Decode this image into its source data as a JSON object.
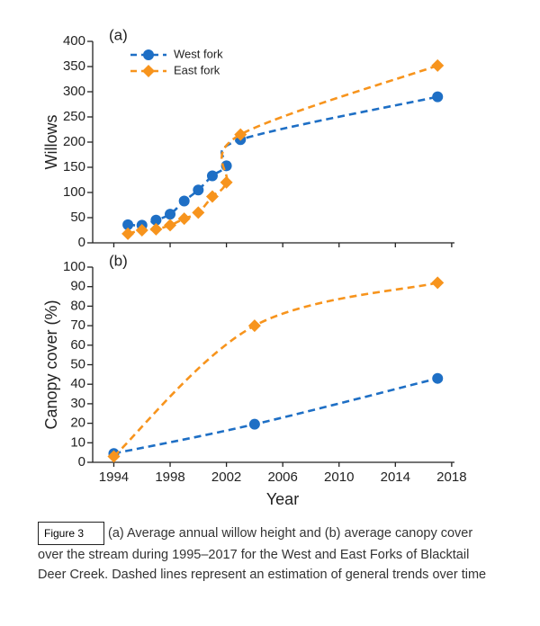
{
  "chart_data": [
    {
      "type": "line",
      "panel_label": "(a)",
      "y_label": "Willows",
      "x": [
        1995,
        1996,
        1997,
        1998,
        1999,
        2000,
        2001,
        2002,
        2003,
        2017
      ],
      "series": [
        {
          "name": "West fork",
          "color": "#1e6fc5",
          "marker": "circle",
          "values": [
            36,
            35,
            45,
            57,
            83,
            105,
            133,
            153,
            205,
            290
          ]
        },
        {
          "name": "East fork",
          "color": "#f7941d",
          "marker": "diamond",
          "values": [
            18,
            25,
            27,
            35,
            48,
            60,
            92,
            120,
            215,
            352
          ]
        }
      ],
      "xlim": [
        1992.5,
        2018.2
      ],
      "xticks": [
        1994,
        1998,
        2002,
        2006,
        2010,
        2014,
        2018
      ],
      "ylim": [
        0,
        400
      ],
      "yticks": [
        0,
        50,
        100,
        150,
        200,
        250,
        300,
        350,
        400
      ],
      "legend": "upper left"
    },
    {
      "type": "line",
      "panel_label": "(b)",
      "y_label": "Canopy cover (%)",
      "x_label": "Year",
      "x": [
        1994,
        2004,
        2017
      ],
      "series": [
        {
          "name": "West fork",
          "color": "#1e6fc5",
          "marker": "circle",
          "values": [
            4.5,
            19.5,
            43
          ]
        },
        {
          "name": "East fork",
          "color": "#f7941d",
          "marker": "diamond",
          "values": [
            3,
            70,
            92
          ]
        }
      ],
      "xlim": [
        1992.5,
        2018.2
      ],
      "xticks": [
        1994,
        1998,
        2002,
        2006,
        2010,
        2014,
        2018
      ],
      "ylim": [
        0,
        100
      ],
      "yticks": [
        0,
        10,
        20,
        30,
        40,
        50,
        60,
        70,
        80,
        90,
        100
      ]
    }
  ],
  "caption": {
    "label": "Figure 3",
    "text": "(a) Average annual willow height and (b) average canopy cover over the stream during 1995–2017 for the West and East Forks of Blacktail Deer Creek. Dashed lines represent an estimation of general trends over time"
  }
}
